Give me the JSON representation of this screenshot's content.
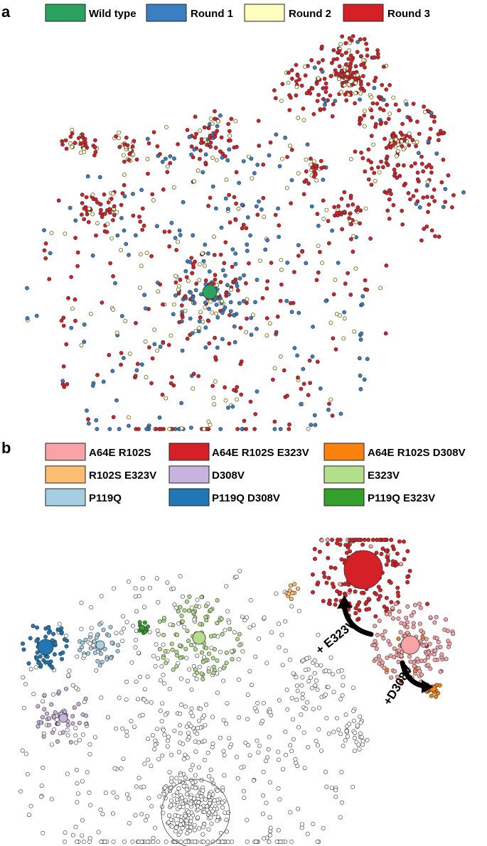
{
  "panel_a": {
    "letter": "a",
    "legend": [
      {
        "label": "Wild type",
        "color": "#2ca25f"
      },
      {
        "label": "Round 1",
        "color": "#3a7fc1"
      },
      {
        "label": "Round 2",
        "color": "#fdfdc0"
      },
      {
        "label": "Round 3",
        "color": "#d62027"
      }
    ]
  },
  "panel_b": {
    "letter": "b",
    "legend": [
      {
        "label": "A64E R102S",
        "color": "#f8a3a5"
      },
      {
        "label": "A64E R102S E323V",
        "color": "#d62027"
      },
      {
        "label": "A64E R102S D308V",
        "color": "#f9820e"
      },
      {
        "label": "R102S E323V",
        "color": "#fdbf6f"
      },
      {
        "label": "D308V",
        "color": "#c7b3dc"
      },
      {
        "label": "E323V",
        "color": "#b3df8a"
      },
      {
        "label": "P119Q",
        "color": "#a6cee3"
      },
      {
        "label": "P119Q D308V",
        "color": "#1f78b4"
      },
      {
        "label": "P119Q E323V",
        "color": "#33a02c"
      }
    ],
    "annotations": [
      {
        "text": "+ E323V"
      },
      {
        "text": "+D308V"
      }
    ],
    "unassigned_color": "#ffffff"
  }
}
